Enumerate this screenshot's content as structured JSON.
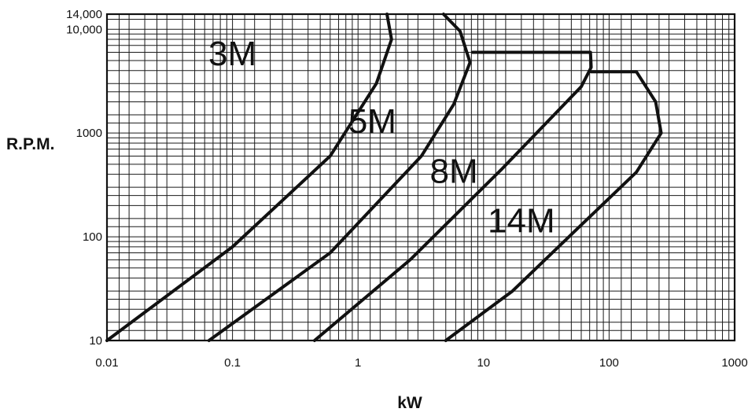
{
  "chart_data": {
    "type": "line",
    "title": "",
    "xlabel": "kW",
    "ylabel": "R.P.M.",
    "x_scale": "log",
    "y_scale": "log",
    "xlim": [
      0.01,
      1000
    ],
    "ylim": [
      10,
      14000
    ],
    "grid": true,
    "x_ticks": [
      {
        "value": 0.01,
        "label": "0.01"
      },
      {
        "value": 0.1,
        "label": "0.1"
      },
      {
        "value": 1,
        "label": "1"
      },
      {
        "value": 10,
        "label": "10"
      },
      {
        "value": 100,
        "label": "100"
      },
      {
        "value": 1000,
        "label": "1000"
      }
    ],
    "y_ticks": [
      {
        "value": 10,
        "label": "10"
      },
      {
        "value": 100,
        "label": "100"
      },
      {
        "value": 1000,
        "label": "1000"
      },
      {
        "value": 10000,
        "label": "10,000"
      },
      {
        "value": 14000,
        "label": "14,000"
      }
    ],
    "series": [
      {
        "name": "3M",
        "label_at": {
          "x": 0.1,
          "y": 4500
        },
        "points": [
          [
            0.01,
            10
          ],
          [
            0.1,
            80
          ],
          [
            0.6,
            600
          ],
          [
            1.4,
            3000
          ],
          [
            1.85,
            8000
          ],
          [
            1.7,
            14000
          ]
        ]
      },
      {
        "name": "5M",
        "label_at": {
          "x": 1.3,
          "y": 1000
        },
        "points": [
          [
            0.065,
            10
          ],
          [
            0.6,
            70
          ],
          [
            3.2,
            600
          ],
          [
            5.8,
            1900
          ],
          [
            7.8,
            4800
          ],
          [
            6.5,
            9600
          ],
          [
            4.8,
            14000
          ]
        ]
      },
      {
        "name": "8M",
        "label_at": {
          "x": 5.8,
          "y": 330
        },
        "points": [
          [
            0.45,
            10
          ],
          [
            2.6,
            60
          ],
          [
            14,
            450
          ],
          [
            60,
            2800
          ],
          [
            72,
            4300
          ],
          [
            71,
            6000
          ],
          [
            8.2,
            6000
          ]
        ]
      },
      {
        "name": "14M",
        "label_at": {
          "x": 20,
          "y": 110
        },
        "points": [
          [
            5,
            10
          ],
          [
            17,
            30
          ],
          [
            60,
            130
          ],
          [
            165,
            420
          ],
          [
            260,
            1000
          ],
          [
            235,
            2000
          ],
          [
            165,
            3900
          ],
          [
            72,
            3900
          ]
        ]
      }
    ]
  }
}
